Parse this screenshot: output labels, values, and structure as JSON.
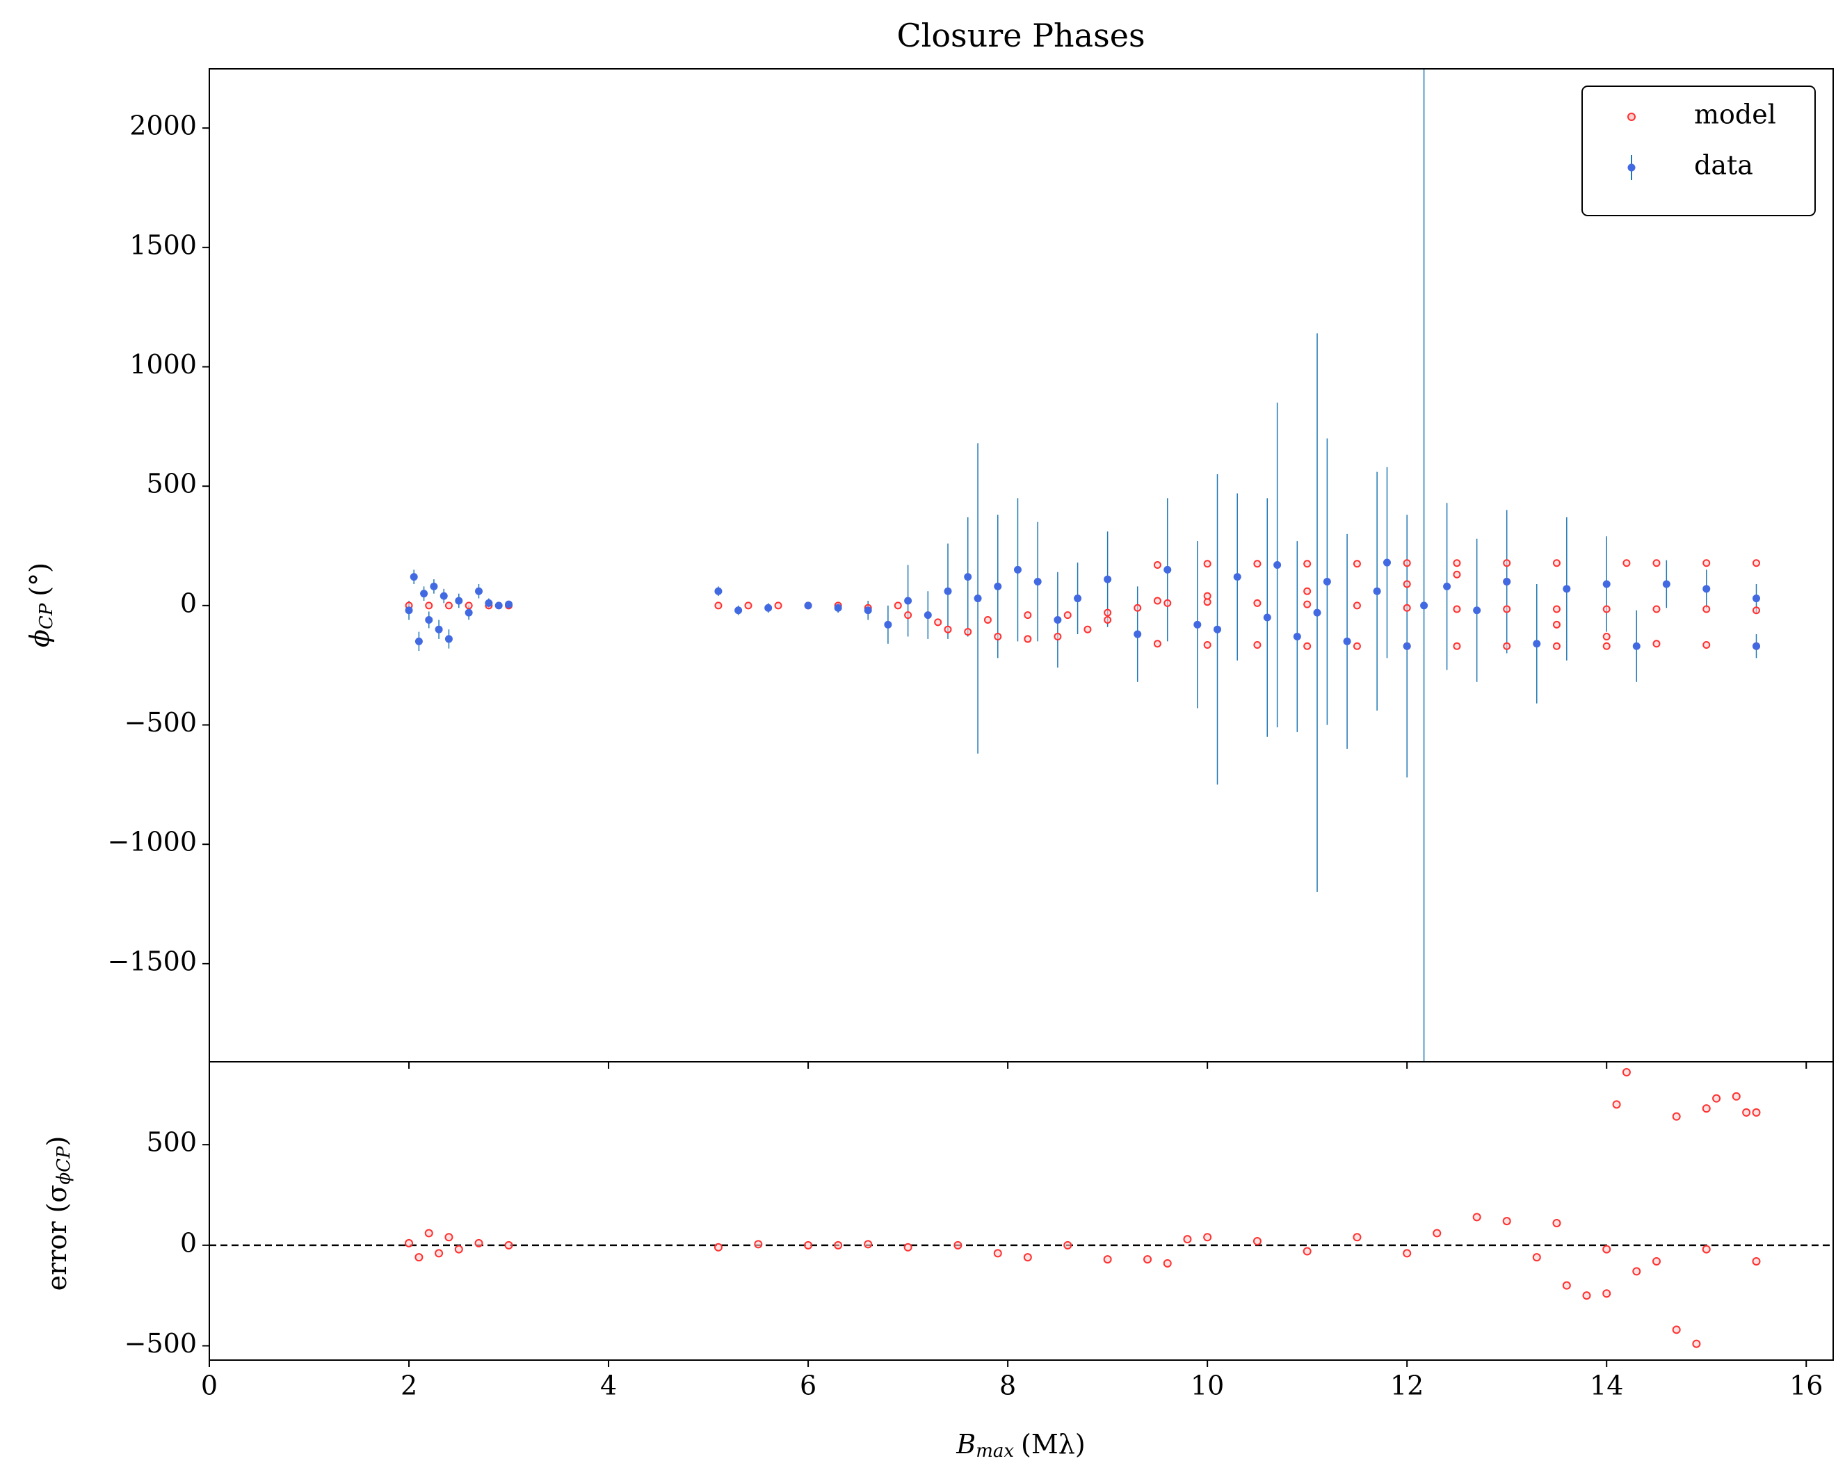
{
  "chart_data": [
    {
      "type": "errorbar-scatter",
      "title": "Closure Phases",
      "y_label": "ϕ",
      "y_label_sub": "CP",
      "y_label_unit": "(°)",
      "xlim": [
        0,
        16.27
      ],
      "xticks": [
        0,
        2,
        4,
        6,
        8,
        10,
        12,
        14,
        16
      ],
      "ylim": [
        -1911,
        2248
      ],
      "yticks": [
        {
          "value": -1500,
          "label": "−1500"
        },
        {
          "value": -1000,
          "label": "−1000"
        },
        {
          "value": -500,
          "label": "−500"
        },
        0,
        500,
        1000,
        1500,
        2000
      ],
      "legend": "upper right",
      "series": [
        {
          "name": "model",
          "color": "#ff3030",
          "x": [
            2.0,
            2.2,
            2.4,
            2.6,
            2.8,
            3.0,
            5.1,
            5.4,
            5.7,
            6.0,
            6.3,
            6.6,
            6.9,
            7.0,
            7.3,
            7.6,
            7.9,
            8.2,
            8.5,
            8.8,
            7.4,
            7.8,
            8.2,
            8.6,
            9.0,
            9.0,
            9.3,
            9.6,
            9.5,
            10,
            10.5,
            11,
            11.5,
            12,
            12.5,
            13,
            13.5,
            14.2,
            14.5,
            15,
            15.5,
            9.5,
            10,
            10.5,
            11,
            11.5,
            12,
            12.5,
            13,
            13.5,
            14,
            14.5,
            15,
            15.5,
            9.5,
            10,
            10.5,
            11,
            11.5,
            12,
            12.5,
            13,
            13.5,
            14,
            14.5,
            15,
            15.5,
            10,
            11,
            12,
            12.5,
            13,
            13.5,
            14
          ],
          "values": [
            0,
            0,
            0,
            0,
            0,
            0,
            0,
            0,
            0,
            0,
            0,
            -10,
            0,
            -40,
            -70,
            -110,
            -130,
            -140,
            -130,
            -100,
            -100,
            -60,
            -40,
            -40,
            -60,
            -30,
            -10,
            10,
            170,
            175,
            175,
            175,
            175,
            178,
            178,
            178,
            178,
            178,
            178,
            178,
            178,
            20,
            15,
            10,
            5,
            0,
            -10,
            -15,
            -15,
            -15,
            -15,
            -15,
            -15,
            -20,
            -160,
            -165,
            -165,
            -170,
            -170,
            -170,
            -170,
            -170,
            -170,
            -170,
            -160,
            -165,
            -170,
            40,
            60,
            90,
            130,
            100,
            -80,
            -130
          ]
        },
        {
          "name": "data",
          "color": "#4169e1",
          "error_color": "#1f77b4",
          "x": [
            2.0,
            2.05,
            2.1,
            2.15,
            2.2,
            2.25,
            2.3,
            2.35,
            2.4,
            2.5,
            2.6,
            2.7,
            2.8,
            2.9,
            3.0,
            5.1,
            5.3,
            5.6,
            6.0,
            6.3,
            6.6,
            6.8,
            7.0,
            7.2,
            7.4,
            7.6,
            7.7,
            7.9,
            8.1,
            8.3,
            8.5,
            8.7,
            9.0,
            9.3,
            9.6,
            9.9,
            10.1,
            10.3,
            10.6,
            10.7,
            10.9,
            11.1,
            11.2,
            11.4,
            11.7,
            11.8,
            12.0,
            12.17,
            12.4,
            12.7,
            13.0,
            13.3,
            13.6,
            14.0,
            14.3,
            14.6,
            15.0,
            15.5,
            15.5
          ],
          "values": [
            -20,
            120,
            -150,
            50,
            -60,
            80,
            -100,
            40,
            -140,
            20,
            -30,
            60,
            10,
            0,
            5,
            60,
            -20,
            -10,
            0,
            -10,
            -20,
            -80,
            20,
            -40,
            60,
            120,
            30,
            80,
            150,
            100,
            -60,
            30,
            110,
            -120,
            150,
            -80,
            -100,
            120,
            -50,
            170,
            -130,
            -30,
            100,
            -150,
            60,
            180,
            -170,
            0,
            80,
            -20,
            100,
            -160,
            70,
            90,
            -170,
            90,
            70,
            30,
            -170
          ],
          "errors": [
            40,
            30,
            40,
            30,
            35,
            30,
            40,
            30,
            40,
            30,
            30,
            30,
            20,
            15,
            10,
            20,
            20,
            20,
            15,
            20,
            40,
            80,
            150,
            100,
            200,
            250,
            650,
            300,
            300,
            250,
            200,
            150,
            200,
            200,
            300,
            350,
            650,
            350,
            500,
            680,
            400,
            1170,
            600,
            450,
            500,
            400,
            550,
            2300,
            350,
            300,
            300,
            250,
            300,
            200,
            150,
            100,
            80,
            60,
            50
          ]
        }
      ]
    },
    {
      "type": "scatter",
      "y_label": "error (σ",
      "y_label_sub": "ϕCP",
      "y_label_end": ")",
      "x_label": "B",
      "x_label_sub": "max",
      "x_label_unit": "(Mλ)",
      "xlim": [
        0,
        16.27
      ],
      "xticks": [
        0,
        2,
        4,
        6,
        8,
        10,
        12,
        14,
        16
      ],
      "ylim": [
        -571,
        912
      ],
      "yticks": [
        {
          "value": -500,
          "label": "−500"
        },
        0,
        500
      ],
      "hline": 0,
      "series": [
        {
          "color": "#ff3030",
          "x": [
            2.0,
            2.1,
            2.2,
            2.3,
            2.4,
            2.5,
            2.7,
            3.0,
            5.1,
            5.5,
            6.0,
            6.3,
            6.6,
            7.0,
            7.5,
            7.9,
            8.2,
            8.6,
            9.0,
            9.4,
            9.6,
            9.8,
            10.0,
            10.5,
            11.0,
            11.5,
            12.0,
            12.3,
            12.7,
            13.0,
            13.3,
            13.5,
            13.6,
            13.8,
            14.0,
            14.1,
            14.2,
            14.3,
            14.5,
            14.7,
            14.7,
            14.9,
            15.0,
            15.1,
            15.3,
            15.4,
            15.5,
            15.5,
            14.0,
            15.0
          ],
          "values": [
            10,
            -60,
            60,
            -40,
            40,
            -20,
            10,
            0,
            -10,
            5,
            0,
            0,
            5,
            -10,
            0,
            -40,
            -60,
            0,
            -70,
            -70,
            -90,
            30,
            40,
            20,
            -30,
            40,
            -40,
            60,
            140,
            120,
            -60,
            110,
            -200,
            -250,
            -240,
            700,
            860,
            -130,
            -80,
            -420,
            640,
            -490,
            680,
            730,
            740,
            660,
            660,
            -80,
            -20,
            -20
          ]
        }
      ]
    }
  ]
}
